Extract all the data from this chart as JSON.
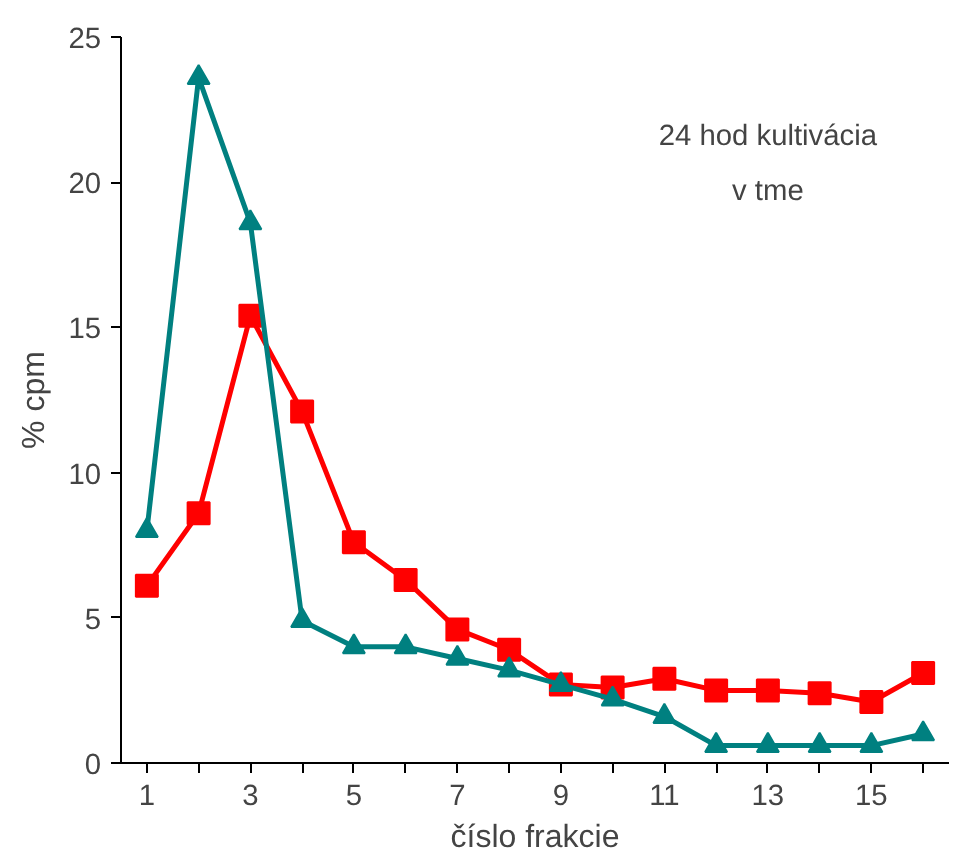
{
  "chart_data": {
    "type": "line",
    "xlabel": "číslo frakcie",
    "ylabel": "% cpm",
    "annotations": [
      "24 hod kultivácia",
      "v tme"
    ],
    "x": [
      1,
      2,
      3,
      4,
      5,
      6,
      7,
      8,
      9,
      10,
      11,
      12,
      13,
      14,
      15,
      16
    ],
    "xlim": [
      0.5,
      16.5
    ],
    "xticks": [
      1,
      {
        "value": 2,
        "label": null
      },
      3,
      {
        "value": 4,
        "label": null
      },
      5,
      {
        "value": 6,
        "label": null
      },
      7,
      {
        "value": 8,
        "label": null
      },
      9,
      {
        "value": 10,
        "label": null
      },
      11,
      {
        "value": 12,
        "label": null
      },
      13,
      {
        "value": 14,
        "label": null
      },
      15,
      {
        "value": 16,
        "label": null
      }
    ],
    "ylim": [
      0,
      25
    ],
    "yticks": [
      0,
      5,
      10,
      15,
      20,
      25
    ],
    "grid": false,
    "series": [
      {
        "color": "#ff0000",
        "marker": "square",
        "values": [
          6.1,
          8.6,
          15.4,
          12.1,
          7.6,
          6.3,
          4.6,
          3.9,
          2.7,
          2.6,
          2.9,
          2.5,
          2.5,
          2.4,
          2.1,
          3.1
        ]
      },
      {
        "color": "#008080",
        "marker": "triangle",
        "values": [
          8.0,
          23.6,
          18.6,
          4.9,
          4.0,
          4.0,
          3.6,
          3.2,
          2.7,
          2.2,
          1.6,
          0.6,
          0.6,
          0.6,
          0.6,
          1.0
        ]
      }
    ]
  }
}
